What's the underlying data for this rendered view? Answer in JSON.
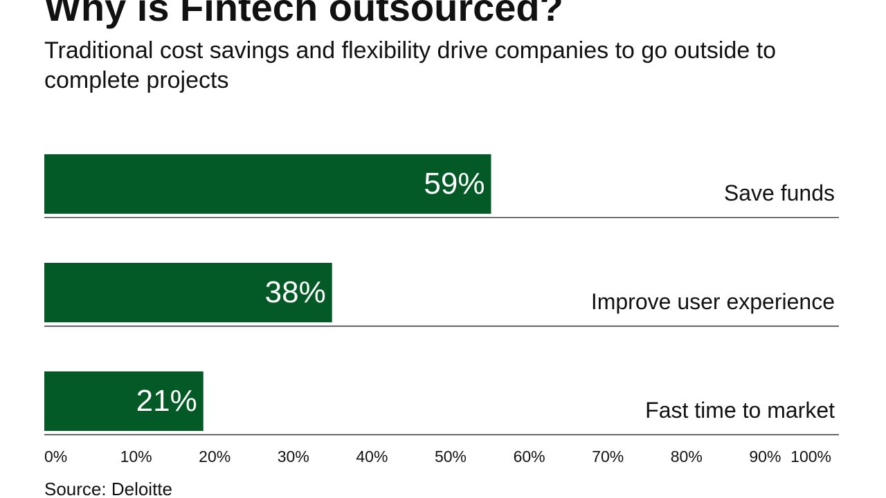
{
  "title": "Why is Fintech outsourced?",
  "subtitle": "Traditional cost savings and flexibility drive companies to go outside to complete projects",
  "source": "Source: Deloitte",
  "colors": {
    "bar": "#045a26",
    "bar_label": "#ffffff",
    "text": "#111111",
    "rule": "#333333"
  },
  "chart_data": {
    "type": "bar",
    "orientation": "horizontal",
    "title": "Why is Fintech outsourced?",
    "subtitle": "Traditional cost savings and flexibility drive companies to go outside to complete projects",
    "categories": [
      "Save funds",
      "Improve user experience",
      "Fast time to market"
    ],
    "values": [
      59,
      38,
      21
    ],
    "value_labels": [
      "59%",
      "38%",
      "21%"
    ],
    "xlim": [
      0,
      100
    ],
    "xticks": [
      0,
      10,
      20,
      30,
      40,
      50,
      60,
      70,
      80,
      90,
      100
    ],
    "xtick_labels": [
      "0%",
      "10%",
      "20%",
      "30%",
      "40%",
      "50%",
      "60%",
      "70%",
      "80%",
      "90%",
      "100%"
    ],
    "xlabel": "",
    "ylabel": "",
    "grid": false,
    "legend": "none"
  }
}
